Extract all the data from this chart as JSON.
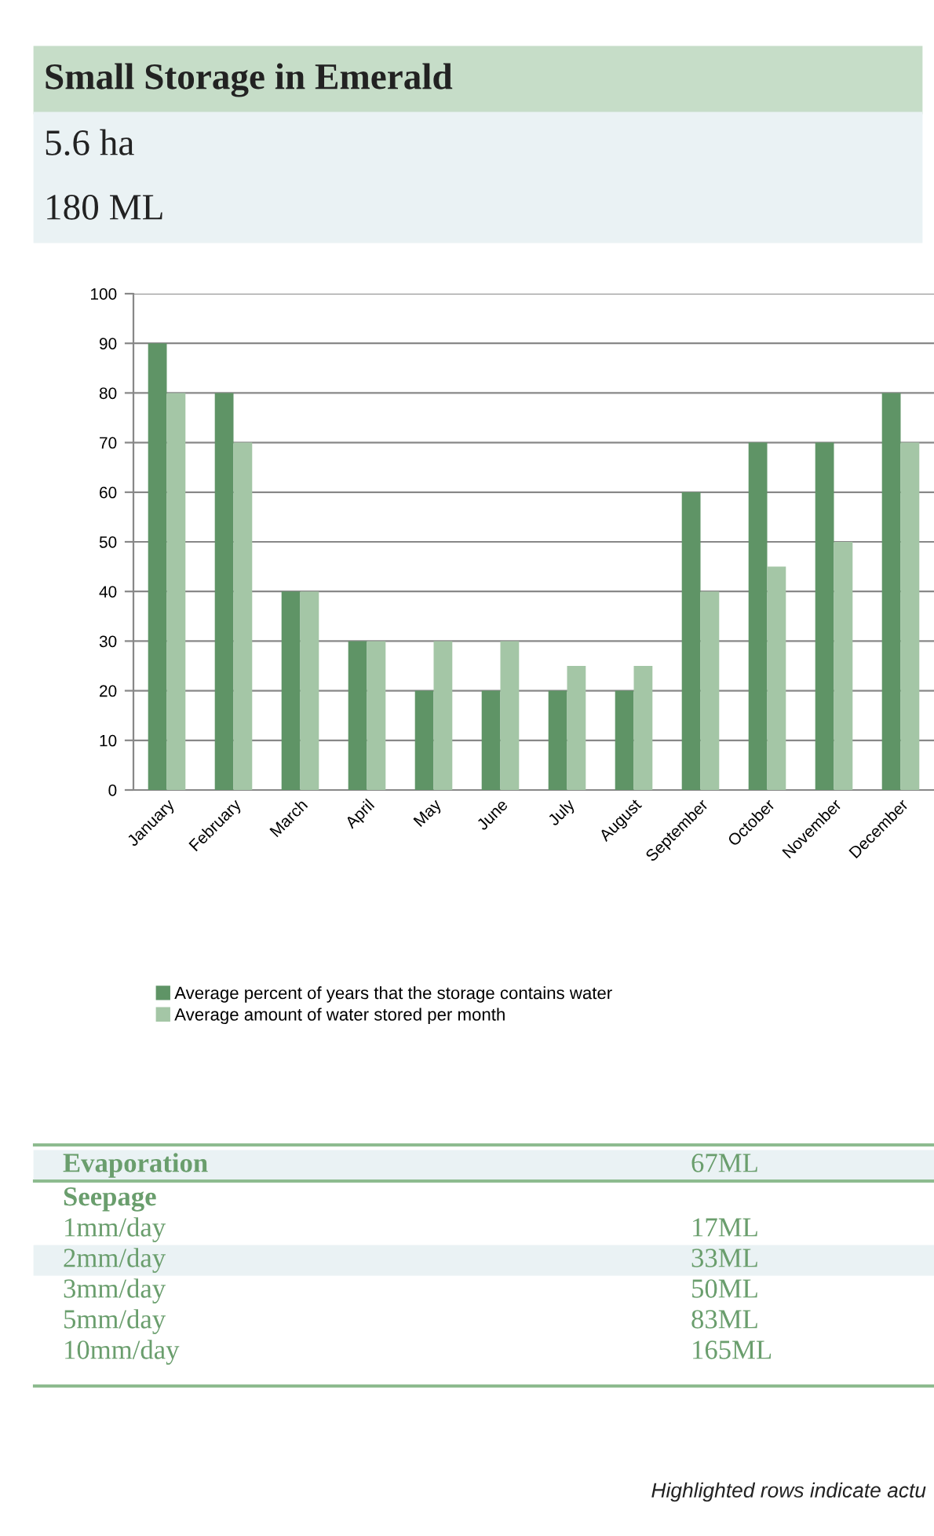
{
  "chart_data": {
    "type": "bar",
    "title": "Small Storage in Emerald",
    "subtitle": "5.6 ha\n180 ML",
    "categories": [
      "January",
      "February",
      "March",
      "April",
      "May",
      "June",
      "July",
      "August",
      "September",
      "October",
      "November",
      "December"
    ],
    "series": [
      {
        "name": "Average percent of years that the storage contains water",
        "color": "#5f9466",
        "values": [
          90,
          80,
          40,
          30,
          20,
          20,
          20,
          20,
          60,
          70,
          70,
          80
        ]
      },
      {
        "name": "Average amount of water stored per month",
        "color": "#a4c6a6",
        "values": [
          80,
          70,
          40,
          30,
          30,
          30,
          25,
          25,
          40,
          45,
          50,
          70
        ]
      }
    ],
    "ylim": [
      0,
      100
    ],
    "yticks": [
      0,
      10,
      20,
      30,
      40,
      50,
      60,
      70,
      80,
      90,
      100
    ],
    "grid": "y",
    "legend": "bottom",
    "annotations": [
      "Evaporation",
      "67ML",
      "Seepage",
      "1mm/day",
      "17ML",
      "2mm/day",
      "33ML",
      "3mm/day",
      "50ML",
      "5mm/day",
      "83ML",
      "10mm/day",
      "165ML",
      "Highlighted rows indicate actu"
    ]
  }
}
